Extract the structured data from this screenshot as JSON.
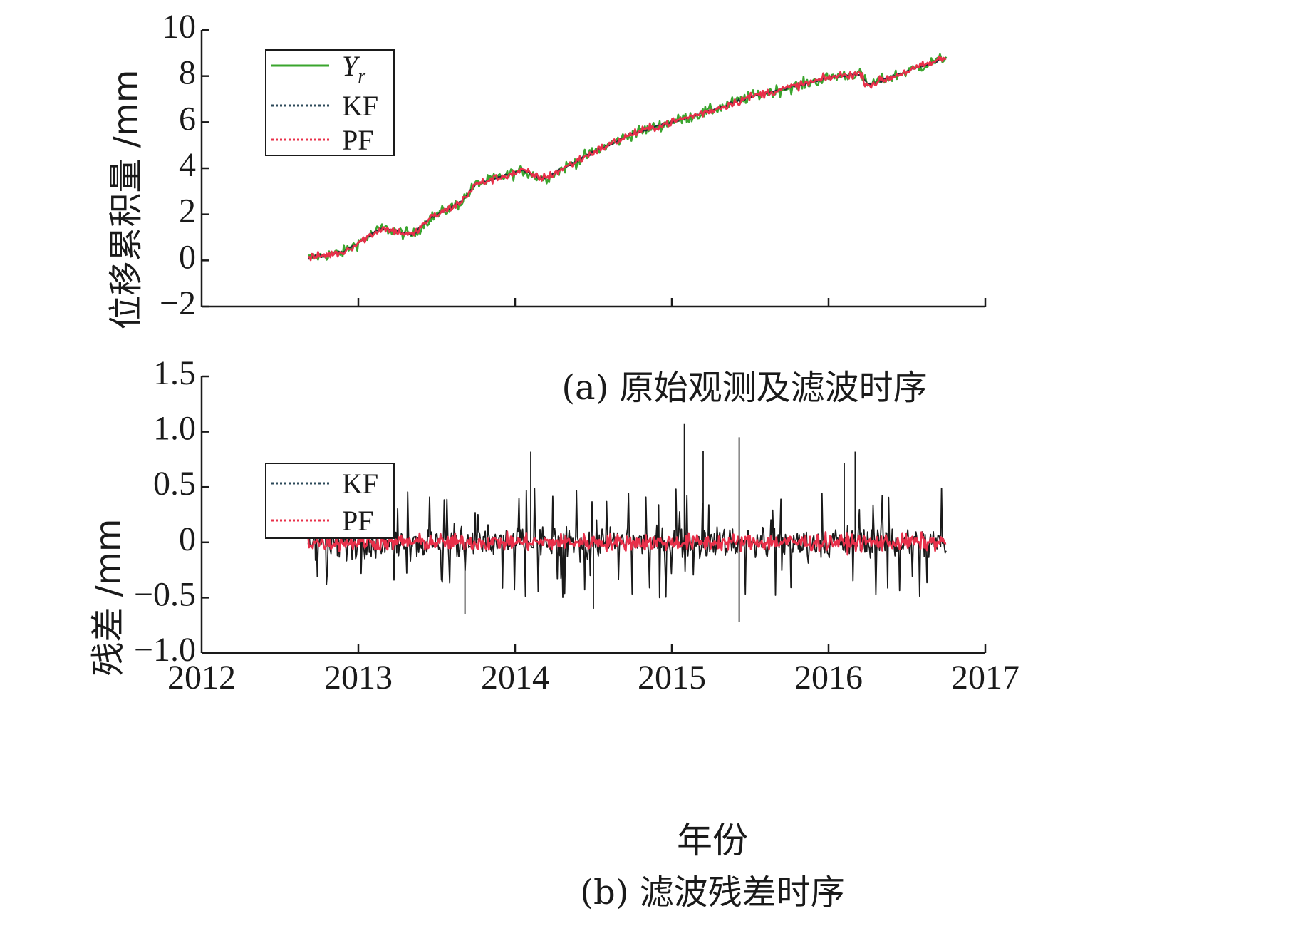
{
  "chart_data": [
    {
      "type": "line",
      "caption": "(a) 原始观测及滤波时序",
      "ylabel": "位移累积量 /mm",
      "xlim": [
        2012,
        2017
      ],
      "ylim": [
        -2,
        10
      ],
      "yticks": [
        -2,
        0,
        2,
        4,
        6,
        8,
        10
      ],
      "ytick_labels": [
        "−2",
        "0",
        "2",
        "4",
        "6",
        "8",
        "10"
      ],
      "legend": {
        "position": "top-left",
        "entries": [
          {
            "label": "Y",
            "subscript": "r",
            "italic": true,
            "color": "#3aa52e",
            "style": "solid"
          },
          {
            "label": "KF",
            "color": "#2c4a5a",
            "style": "dotted"
          },
          {
            "label": "PF",
            "color": "#e8304a",
            "style": "dotted"
          }
        ]
      },
      "trend": {
        "x": [
          2012.68,
          2012.9,
          2013.15,
          2013.35,
          2013.45,
          2013.65,
          2013.75,
          2014.05,
          2014.15,
          2014.2,
          2014.5,
          2014.75,
          2015.0,
          2015.25,
          2015.5,
          2015.75,
          2016.05,
          2016.2,
          2016.25,
          2016.5,
          2016.75
        ],
        "y": [
          0.1,
          0.35,
          1.4,
          1.1,
          1.8,
          2.5,
          3.3,
          3.9,
          3.6,
          3.6,
          4.7,
          5.5,
          6.0,
          6.5,
          7.1,
          7.5,
          8.0,
          8.1,
          7.6,
          8.2,
          8.8
        ]
      },
      "series": [
        {
          "name": "Y_r",
          "color": "#3aa52e",
          "noise": 0.24
        },
        {
          "name": "KF",
          "color": "#1e2e36",
          "noise": 0.06
        },
        {
          "name": "PF",
          "color": "#e8304a",
          "noise": 0.17
        }
      ]
    },
    {
      "type": "line",
      "caption": "(b) 滤波残差时序",
      "ylabel": "残差 /mm",
      "xlabel": "年份",
      "xlim": [
        2012,
        2017
      ],
      "ylim": [
        -1.0,
        1.5
      ],
      "yticks": [
        -1.0,
        -0.5,
        0,
        0.5,
        1.0,
        1.5
      ],
      "ytick_labels": [
        "−1.0",
        "−0.5",
        "0",
        "0.5",
        "1.0",
        "1.5"
      ],
      "xticks": [
        2012,
        2013,
        2014,
        2015,
        2016,
        2017
      ],
      "xtick_labels": [
        "2012",
        "2013",
        "2014",
        "2015",
        "2016",
        "2017"
      ],
      "x_range": [
        2012.68,
        2016.75
      ],
      "legend": {
        "position": "top-left",
        "entries": [
          {
            "label": "KF",
            "color": "#2c4a5a",
            "style": "dotted"
          },
          {
            "label": "PF",
            "color": "#e8304a",
            "style": "dotted"
          }
        ]
      },
      "series": [
        {
          "name": "KF",
          "color": "#1a1a1a",
          "amplitude": 0.25
        },
        {
          "name": "PF",
          "color": "#e8304a",
          "amplitude": 0.13
        }
      ],
      "spikes": [
        {
          "x": 2014.1,
          "y": 0.82
        },
        {
          "x": 2015.08,
          "y": 1.07
        },
        {
          "x": 2015.2,
          "y": 0.83
        },
        {
          "x": 2015.43,
          "y": 0.95
        },
        {
          "x": 2016.1,
          "y": 0.72
        },
        {
          "x": 2016.17,
          "y": 0.82
        },
        {
          "x": 2013.68,
          "y": -0.65
        },
        {
          "x": 2015.43,
          "y": -0.72
        },
        {
          "x": 2014.5,
          "y": -0.6
        }
      ]
    }
  ]
}
